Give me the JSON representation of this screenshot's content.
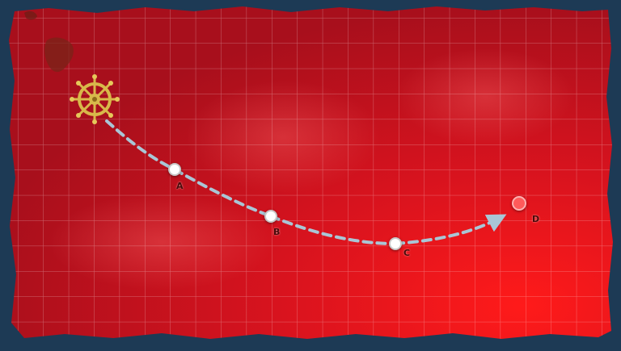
{
  "map": {
    "theme_colors": {
      "sea": "#c8141e",
      "sea_dark": "#8e0f18",
      "grid": "#ffffff",
      "frame": "#1d3a55",
      "route": "#a9c6d6"
    },
    "start": {
      "icon": "ship-wheel-icon"
    },
    "nodes": [
      {
        "label": "A",
        "type": "normal"
      },
      {
        "label": "B",
        "type": "normal"
      },
      {
        "label": "C",
        "type": "normal"
      },
      {
        "label": "D",
        "type": "enemy"
      }
    ]
  }
}
